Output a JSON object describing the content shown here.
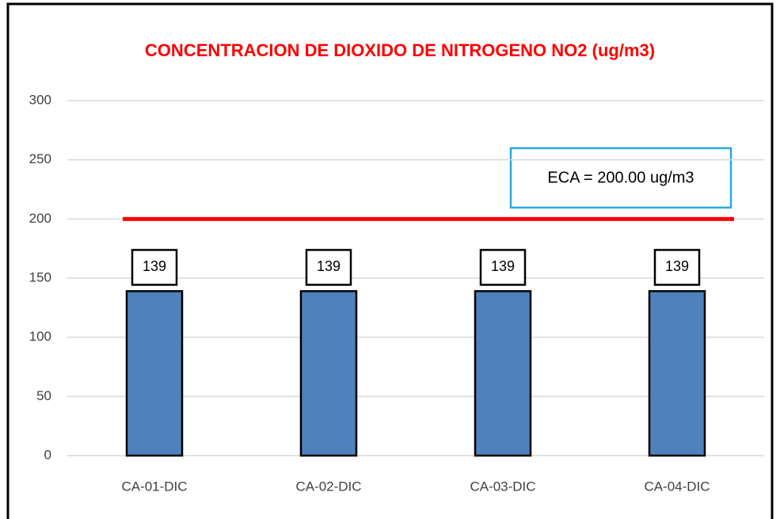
{
  "chart_data": {
    "type": "bar",
    "title": "CONCENTRACION DE DIOXIDO DE NITROGENO NO2 (ug/m3)",
    "categories": [
      "CA-01-DIC",
      "CA-02-DIC",
      "CA-03-DIC",
      "CA-04-DIC"
    ],
    "values": [
      139,
      139,
      139,
      139
    ],
    "color": "#4f81bd",
    "ylim": [
      0,
      300
    ],
    "yticks": [
      0,
      50,
      100,
      150,
      200,
      250,
      300
    ],
    "grid": true,
    "reference_line": {
      "value": 200,
      "color": "#ff0000"
    },
    "annotation": "ECA = 200.00 ug/m3"
  }
}
